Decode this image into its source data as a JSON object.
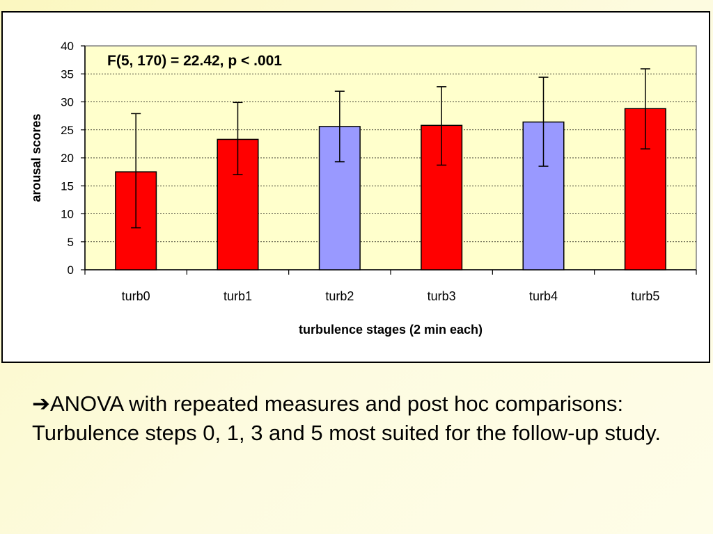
{
  "chart_data": {
    "type": "bar",
    "title": "",
    "annotation": "F(5, 170) = 22.42, p < .001",
    "xlabel": "turbulence stages (2 min each)",
    "ylabel": "arousal scores",
    "ylim": [
      0,
      40
    ],
    "yticks": [
      "0",
      "5",
      "10",
      "15",
      "20",
      "25",
      "30",
      "35",
      "40"
    ],
    "categories": [
      "turb0",
      "turb1",
      "turb2",
      "turb3",
      "turb4",
      "turb5"
    ],
    "values": [
      17.5,
      23.3,
      25.6,
      25.8,
      26.4,
      28.8
    ],
    "error_low": [
      7.5,
      17.0,
      19.3,
      18.7,
      18.5,
      21.6
    ],
    "error_high": [
      27.9,
      29.9,
      31.9,
      32.7,
      34.4,
      35.9
    ],
    "bar_colors": [
      "#ff0000",
      "#ff0000",
      "#9999ff",
      "#ff0000",
      "#9999ff",
      "#ff0000"
    ],
    "plot_background": "#ffffcc",
    "grid": true,
    "legend": "none"
  },
  "caption": {
    "arrow": "➔",
    "text": "ANOVA with repeated measures and post hoc comparisons: Turbulence steps 0, 1, 3 and 5 most suited for the follow-up study."
  }
}
